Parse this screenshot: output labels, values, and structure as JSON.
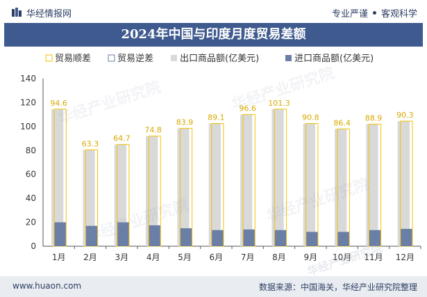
{
  "header": {
    "brand_name": "华经情报网",
    "tagline_left": "专业严谨",
    "tagline_right": "客观科学"
  },
  "footer": {
    "website": "www.huaon.com",
    "source": "数据来源：中国海关，华经产业研究院整理"
  },
  "watermarks": [
    "华经产业研究院",
    "www.huaon.com"
  ],
  "colors": {
    "title_bg": "#3f5a8e",
    "export_bar": "#d9d9d9",
    "import_bar": "#6b7fa6",
    "surplus": "#f2c200",
    "deficit": "#6b7fa6"
  },
  "chart_data": {
    "type": "bar",
    "title": "2024年中国与印度月度贸易差额",
    "categories": [
      "1月",
      "2月",
      "3月",
      "4月",
      "5月",
      "6月",
      "7月",
      "8月",
      "9月",
      "10月",
      "11月",
      "12月"
    ],
    "series": [
      {
        "name": "出口商品额(亿美元)",
        "values": [
          114.5,
          80.5,
          85.0,
          92.0,
          98.5,
          102.5,
          110.0,
          114.5,
          102.5,
          98.0,
          102.0,
          104.5
        ]
      },
      {
        "name": "进口商品额(亿美元)",
        "values": [
          20.0,
          17.0,
          20.0,
          17.5,
          15.0,
          13.5,
          14.0,
          13.5,
          12.0,
          12.0,
          13.5,
          14.5
        ]
      },
      {
        "name": "贸易顺差",
        "values": [
          94.6,
          63.3,
          64.7,
          74.8,
          83.9,
          89.1,
          96.6,
          101.3,
          90.8,
          86.4,
          88.9,
          90.3
        ]
      },
      {
        "name": "贸易逆差",
        "values": [
          null,
          null,
          null,
          null,
          null,
          null,
          null,
          null,
          null,
          null,
          null,
          null
        ]
      }
    ],
    "data_labels": [
      "94.6",
      "63.3",
      "64.7",
      "74.8",
      "83.9",
      "89.1",
      "96.6",
      "101.3",
      "90.8",
      "86.4",
      "88.9",
      "90.3"
    ],
    "y_ticks": [
      "0",
      "20",
      "40",
      "60",
      "80",
      "100",
      "120",
      "140"
    ],
    "ylim": [
      0,
      140
    ],
    "legend_position": "top",
    "grid": false
  }
}
